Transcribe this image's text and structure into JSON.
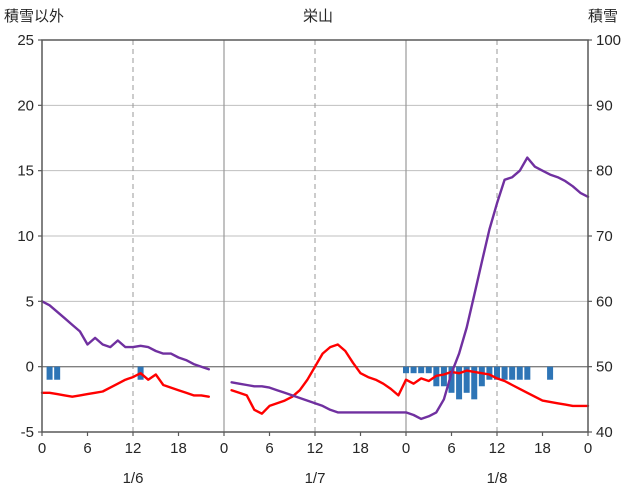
{
  "chart_data": {
    "type": "line",
    "title": "栄山",
    "left_axis_title": "積雪以外",
    "right_axis_title": "積雪",
    "left_axis": {
      "min": -5,
      "max": 25,
      "step": 5
    },
    "right_axis": {
      "min": 40,
      "max": 100,
      "step": 10
    },
    "hours_total": 72,
    "hour_tick_step": 6,
    "day_labels": [
      {
        "label": "1/6",
        "center_hour": 12
      },
      {
        "label": "1/7",
        "center_hour": 36
      },
      {
        "label": "1/8",
        "center_hour": 60
      }
    ],
    "series": [
      {
        "name": "series-red-left-axis",
        "axis": "left",
        "color": "#FF0000",
        "values": [
          -2,
          -2,
          -2.1,
          -2.2,
          -2.3,
          -2.2,
          -2.1,
          -2,
          -1.9,
          -1.6,
          -1.3,
          -1,
          -0.8,
          -0.5,
          -1,
          -0.6,
          -1.4,
          -1.6,
          -1.8,
          -2,
          -2.2,
          -2.2,
          -2.3,
          null,
          null,
          -1.8,
          -2,
          -2.2,
          -3.3,
          -3.6,
          -3,
          -2.8,
          -2.6,
          -2.3,
          -1.8,
          -1,
          0,
          1,
          1.5,
          1.7,
          1.2,
          0.3,
          -0.5,
          -0.8,
          -1,
          -1.3,
          -1.7,
          -2.2,
          -1,
          -1.3,
          -0.9,
          -1.1,
          -0.7,
          -0.6,
          -0.4,
          -0.5,
          -0.3,
          -0.4,
          -0.5,
          -0.6,
          -0.9,
          -1.1,
          -1.4,
          -1.7,
          -2,
          -2.3,
          -2.6,
          -2.7,
          -2.8,
          -2.9,
          -3,
          -3,
          -3
        ]
      },
      {
        "name": "series-purple-right-axis",
        "axis": "right",
        "color": "#7030A0",
        "values": [
          60,
          59.4,
          58.4,
          57.4,
          56.4,
          55.4,
          53.4,
          54.4,
          53.4,
          53,
          54,
          53,
          53,
          53.2,
          53,
          52.4,
          52,
          52,
          51.4,
          51,
          50.4,
          50,
          49.6,
          null,
          null,
          47.6,
          47.4,
          47.2,
          47,
          47,
          46.8,
          46.4,
          46,
          45.6,
          45.2,
          44.8,
          44.4,
          44,
          43.4,
          43,
          43,
          43,
          43,
          43,
          43,
          43,
          43,
          43,
          43,
          42.6,
          42,
          42.4,
          43,
          45,
          49,
          52,
          56,
          61,
          66,
          71,
          75,
          78.6,
          79,
          80,
          82,
          80.6,
          80,
          79.4,
          79,
          78.4,
          77.6,
          76.6,
          76
        ]
      }
    ],
    "bars": {
      "name": "bars-blue-left-axis",
      "axis": "left",
      "color": "#2E75B6",
      "values": [
        0,
        1,
        1,
        0,
        0,
        0,
        0,
        0,
        0,
        0,
        0,
        0,
        0,
        1,
        0,
        0,
        0,
        0,
        0,
        0,
        0,
        0,
        0,
        0,
        0,
        0,
        0,
        0,
        0,
        0,
        0,
        0,
        0,
        0,
        0,
        0,
        0,
        0,
        0,
        0,
        0,
        0,
        0,
        0,
        0,
        0,
        0,
        0,
        0.5,
        0.5,
        0.5,
        0.5,
        1.5,
        1.5,
        2,
        2.5,
        2,
        2.5,
        1.5,
        1,
        1,
        1,
        1,
        1,
        1,
        0,
        0,
        1,
        0,
        0,
        0,
        0,
        0
      ]
    },
    "style": {
      "grid_color": "#BFBFBF",
      "zero_line_color": "#808080",
      "border_color": "#595959",
      "day_line_color": "#999999",
      "dash_line_color": "#999999",
      "text_color": "#262626"
    }
  }
}
